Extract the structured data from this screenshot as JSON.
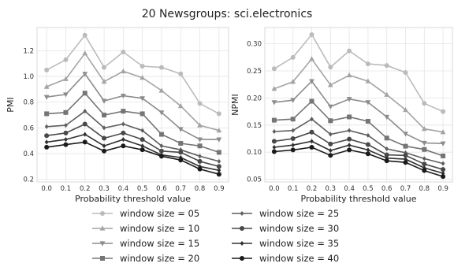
{
  "figure": {
    "title": "20 Newsgroups: sci.electronics"
  },
  "x_ticks": [
    "0.0",
    "0.1",
    "0.2",
    "0.3",
    "0.4",
    "0.5",
    "0.6",
    "0.7",
    "0.8",
    "0.9"
  ],
  "chart_data": [
    {
      "type": "line",
      "xlabel": "Probability threshold value",
      "ylabel": "PMI",
      "x": [
        0.0,
        0.1,
        0.2,
        0.3,
        0.4,
        0.5,
        0.6,
        0.7,
        0.8,
        0.9
      ],
      "xlim": [
        -0.05,
        0.95
      ],
      "ylim": [
        0.18,
        1.38
      ],
      "yticks": [
        "0.2",
        "0.4",
        "0.6",
        "0.8",
        "1.0",
        "1.2"
      ],
      "grid": true,
      "series": [
        {
          "name": "window size = 05",
          "color": "#bbbbbb",
          "marker": "circle",
          "values": [
            1.05,
            1.13,
            1.32,
            1.07,
            1.19,
            1.08,
            1.07,
            1.02,
            0.79,
            0.71
          ]
        },
        {
          "name": "window size = 10",
          "color": "#a4a4a4",
          "marker": "triangle-up",
          "values": [
            0.92,
            0.98,
            1.18,
            0.96,
            1.04,
            0.99,
            0.89,
            0.77,
            0.62,
            0.58
          ]
        },
        {
          "name": "window size = 15",
          "color": "#8c8c8c",
          "marker": "triangle-down",
          "values": [
            0.84,
            0.86,
            1.02,
            0.81,
            0.85,
            0.83,
            0.72,
            0.59,
            0.51,
            0.51
          ]
        },
        {
          "name": "window size = 20",
          "color": "#757575",
          "marker": "square",
          "values": [
            0.71,
            0.72,
            0.87,
            0.7,
            0.73,
            0.71,
            0.55,
            0.48,
            0.46,
            0.41
          ]
        },
        {
          "name": "window size = 25",
          "color": "#5e5e5e",
          "marker": "diamond",
          "values": [
            0.61,
            0.62,
            0.73,
            0.6,
            0.63,
            0.58,
            0.46,
            0.43,
            0.38,
            0.34
          ]
        },
        {
          "name": "window size = 30",
          "color": "#484848",
          "marker": "circle",
          "values": [
            0.54,
            0.56,
            0.63,
            0.52,
            0.56,
            0.51,
            0.42,
            0.41,
            0.34,
            0.3
          ]
        },
        {
          "name": "window size = 35",
          "color": "#303030",
          "marker": "diamond",
          "values": [
            0.49,
            0.51,
            0.55,
            0.46,
            0.51,
            0.46,
            0.39,
            0.37,
            0.3,
            0.27
          ]
        },
        {
          "name": "window size = 40",
          "color": "#1a1a1a",
          "marker": "circle",
          "values": [
            0.45,
            0.47,
            0.49,
            0.42,
            0.46,
            0.43,
            0.38,
            0.35,
            0.28,
            0.24
          ]
        }
      ]
    },
    {
      "type": "line",
      "xlabel": "Probability threshold value",
      "ylabel": "NPMI",
      "x": [
        0.0,
        0.1,
        0.2,
        0.3,
        0.4,
        0.5,
        0.6,
        0.7,
        0.8,
        0.9
      ],
      "xlim": [
        -0.05,
        0.95
      ],
      "ylim": [
        0.045,
        0.33
      ],
      "yticks": [
        "0.05",
        "0.10",
        "0.15",
        "0.20",
        "0.25",
        "0.30"
      ],
      "grid": true,
      "series": [
        {
          "name": "window size = 05",
          "color": "#bbbbbb",
          "marker": "circle",
          "values": [
            0.254,
            0.275,
            0.317,
            0.257,
            0.287,
            0.263,
            0.26,
            0.247,
            0.19,
            0.175
          ]
        },
        {
          "name": "window size = 10",
          "color": "#a4a4a4",
          "marker": "triangle-up",
          "values": [
            0.217,
            0.23,
            0.272,
            0.224,
            0.242,
            0.231,
            0.206,
            0.178,
            0.143,
            0.137
          ]
        },
        {
          "name": "window size = 15",
          "color": "#8c8c8c",
          "marker": "triangle-down",
          "values": [
            0.192,
            0.196,
            0.231,
            0.184,
            0.198,
            0.192,
            0.165,
            0.134,
            0.117,
            0.116
          ]
        },
        {
          "name": "window size = 20",
          "color": "#757575",
          "marker": "square",
          "values": [
            0.159,
            0.161,
            0.194,
            0.158,
            0.165,
            0.157,
            0.126,
            0.111,
            0.105,
            0.093
          ]
        },
        {
          "name": "window size = 25",
          "color": "#5e5e5e",
          "marker": "diamond",
          "values": [
            0.138,
            0.14,
            0.161,
            0.133,
            0.14,
            0.131,
            0.106,
            0.099,
            0.088,
            0.079
          ]
        },
        {
          "name": "window size = 30",
          "color": "#484848",
          "marker": "circle",
          "values": [
            0.12,
            0.125,
            0.137,
            0.115,
            0.124,
            0.114,
            0.095,
            0.094,
            0.078,
            0.068
          ]
        },
        {
          "name": "window size = 35",
          "color": "#303030",
          "marker": "diamond",
          "values": [
            0.109,
            0.113,
            0.12,
            0.103,
            0.113,
            0.104,
            0.089,
            0.087,
            0.071,
            0.061
          ]
        },
        {
          "name": "window size = 40",
          "color": "#1a1a1a",
          "marker": "circle",
          "values": [
            0.101,
            0.104,
            0.109,
            0.094,
            0.104,
            0.097,
            0.084,
            0.081,
            0.066,
            0.055
          ]
        }
      ]
    }
  ]
}
